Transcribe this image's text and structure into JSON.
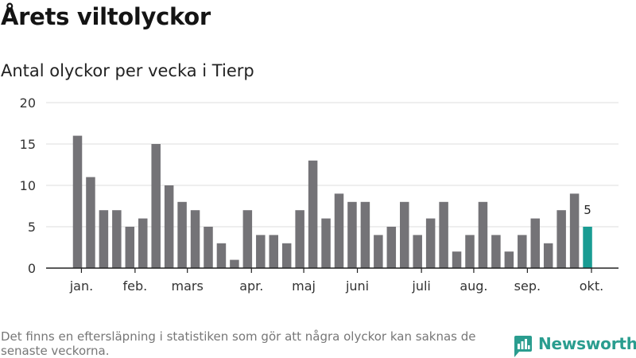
{
  "title": "Årets viltolyckor",
  "subtitle": "Antal olyckor per vecka i Tierp",
  "footnote": "Det finns en eftersläpning i statistiken som gör att några olyckor kan saknas de senaste veckorna.",
  "brand": {
    "name": "Newsworthy",
    "icon": "newsworthy-logo-icon"
  },
  "colors": {
    "bar": "#747377",
    "highlight": "#1a9c93",
    "grid": "#dddddd",
    "brand": "#2a9d8f"
  },
  "chart_data": {
    "type": "bar",
    "title": "Antal olyckor per vecka i Tierp",
    "xlabel": "",
    "ylabel": "",
    "ylim": [
      0,
      20
    ],
    "yticks": [
      0,
      5,
      10,
      15,
      20
    ],
    "grid": true,
    "values": [
      16,
      11,
      7,
      7,
      5,
      6,
      15,
      10,
      8,
      7,
      5,
      3,
      1,
      7,
      4,
      4,
      3,
      7,
      13,
      6,
      9,
      8,
      8,
      4,
      5,
      8,
      4,
      6,
      8,
      2,
      4,
      8,
      4,
      2,
      4,
      6,
      3,
      7,
      9,
      5
    ],
    "highlight_index": 39,
    "data_labels": [
      {
        "index": 39,
        "text": "5"
      }
    ],
    "month_ticks": [
      {
        "label": "jan.",
        "index": 0.3
      },
      {
        "label": "feb.",
        "index": 4.4
      },
      {
        "label": "mars",
        "index": 8.4
      },
      {
        "label": "apr.",
        "index": 13.3
      },
      {
        "label": "maj",
        "index": 17.3
      },
      {
        "label": "juni",
        "index": 21.4
      },
      {
        "label": "juli",
        "index": 26.3
      },
      {
        "label": "aug.",
        "index": 30.3
      },
      {
        "label": "sep.",
        "index": 34.4
      },
      {
        "label": "okt.",
        "index": 39.3
      }
    ]
  }
}
